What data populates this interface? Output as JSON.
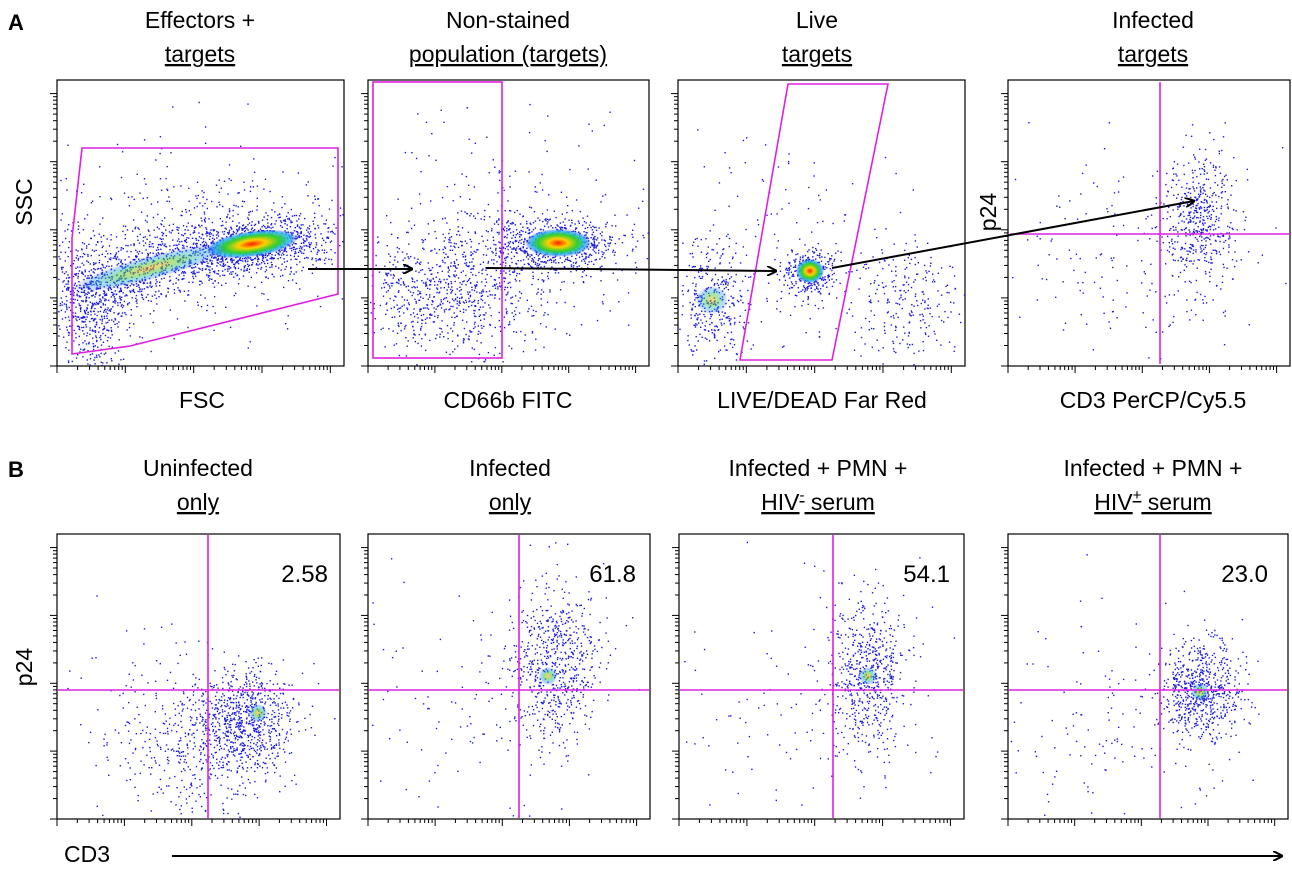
{
  "panel_a": {
    "letter": "A",
    "plots": [
      {
        "title_line1": "Effectors +",
        "title_line2": "targets",
        "xlabel": "FSC"
      },
      {
        "title_line1": "Non-stained",
        "title_line2": "population (targets)",
        "xlabel": "CD66b FITC"
      },
      {
        "title_line1": "Live",
        "title_line2": "targets",
        "xlabel": "LIVE/DEAD Far Red"
      },
      {
        "title_line1": "Infected",
        "title_line2": "targets",
        "xlabel": "CD3 PerCP/Cy5.5"
      }
    ],
    "ylabel_scatter": "SSC",
    "ylabel_p24": "p24"
  },
  "panel_b": {
    "letter": "B",
    "plots": [
      {
        "title_line1": "Uninfected",
        "title_line2": "only",
        "value": "2.58"
      },
      {
        "title_line1": "Infected",
        "title_line2": "only",
        "value": "61.8"
      },
      {
        "title_line1": "Infected + PMN +",
        "title_line2_pre": "HIV",
        "title_line2_sup": "-",
        "title_line2_post": " serum",
        "value": "54.1"
      },
      {
        "title_line1": "Infected + PMN +",
        "title_line2_pre": "HIV",
        "title_line2_sup": "+",
        "title_line2_post": " serum",
        "value": "23.0"
      }
    ],
    "ylabel": "p24",
    "xlabel": "CD3"
  },
  "colors": {
    "gate": "#e020e0",
    "dots": "#1a1adc",
    "density_high": "#ff2000",
    "density_mid": "#30d030",
    "density_low": "#20b0ff"
  }
}
